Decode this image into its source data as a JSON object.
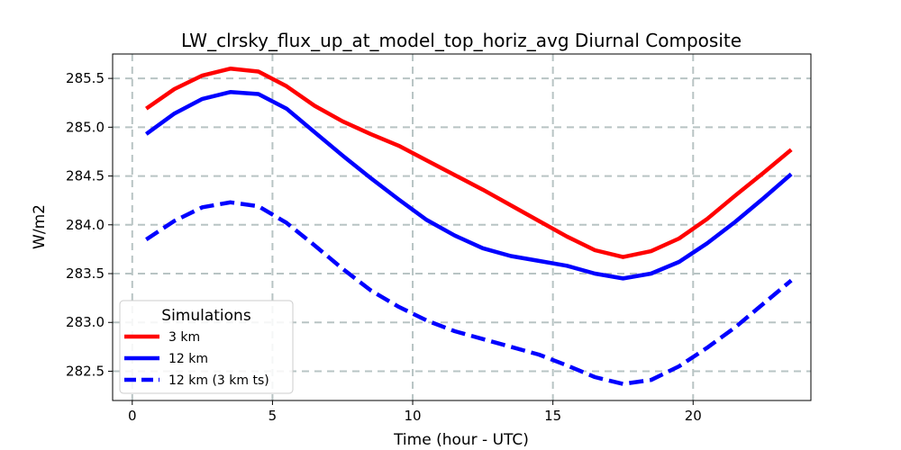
{
  "chart_data": {
    "type": "line",
    "title": "LW_clrsky_flux_up_at_model_top_horiz_avg Diurnal Composite",
    "xlabel": "Time (hour - UTC)",
    "ylabel": "W/m2",
    "xlim": [
      -0.7,
      24.2
    ],
    "ylim": [
      282.2,
      285.75
    ],
    "xticks": [
      0,
      5,
      10,
      15,
      20
    ],
    "yticks": [
      282.5,
      283.0,
      283.5,
      284.0,
      284.5,
      285.0,
      285.5
    ],
    "grid": true,
    "legend": {
      "title": "Simulations",
      "placement": "lower-left"
    },
    "x": [
      0.5,
      1.5,
      2.5,
      3.5,
      4.5,
      5.5,
      6.5,
      7.5,
      8.5,
      9.5,
      10.5,
      11.5,
      12.5,
      13.5,
      14.5,
      15.5,
      16.5,
      17.5,
      18.5,
      19.5,
      20.5,
      21.5,
      22.5,
      23.5
    ],
    "series": [
      {
        "name": "3 km",
        "color": "#ff0000",
        "dashed": false,
        "values": [
          285.19,
          285.39,
          285.53,
          285.6,
          285.57,
          285.42,
          285.22,
          285.06,
          284.93,
          284.81,
          284.66,
          284.51,
          284.36,
          284.2,
          284.04,
          283.88,
          283.74,
          283.67,
          283.73,
          283.86,
          284.06,
          284.3,
          284.53,
          284.77
        ]
      },
      {
        "name": "12 km",
        "color": "#0000ff",
        "dashed": false,
        "values": [
          284.93,
          285.14,
          285.29,
          285.36,
          285.34,
          285.19,
          284.95,
          284.71,
          284.48,
          284.26,
          284.05,
          283.89,
          283.76,
          283.68,
          283.63,
          283.58,
          283.5,
          283.45,
          283.5,
          283.62,
          283.81,
          284.03,
          284.27,
          284.52
        ]
      },
      {
        "name": "12 km (3 km ts)",
        "color": "#0000ff",
        "dashed": true,
        "values": [
          283.85,
          284.04,
          284.18,
          284.23,
          284.19,
          284.02,
          283.79,
          283.55,
          283.33,
          283.16,
          283.02,
          282.91,
          282.83,
          282.75,
          282.67,
          282.56,
          282.44,
          282.37,
          282.41,
          282.55,
          282.74,
          282.95,
          283.19,
          283.43
        ]
      }
    ]
  }
}
